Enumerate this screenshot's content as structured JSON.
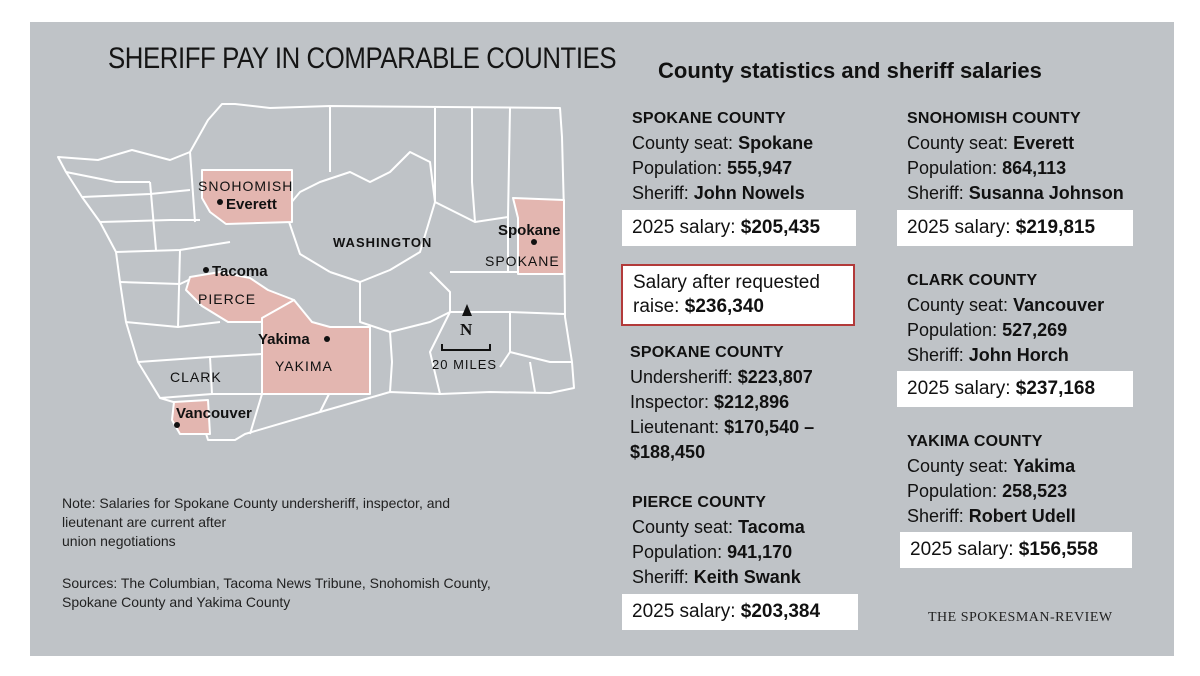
{
  "map_title": "SHERIFF PAY IN COMPARABLE COUNTIES",
  "stats_title": "County statistics and sheriff salaries",
  "map": {
    "state_label": "WASHINGTON",
    "counties": [
      {
        "name": "SNOHOMISH",
        "city": "Everett"
      },
      {
        "name": "PIERCE",
        "city": "Tacoma"
      },
      {
        "name": "YAKIMA",
        "city": "Yakima"
      },
      {
        "name": "CLARK",
        "city": "Vancouver"
      },
      {
        "name": "SPOKANE",
        "city": "Spokane"
      }
    ],
    "north_label": "N",
    "scale_label": "20 MILES",
    "highlight_color": "#e3b6b0",
    "land_color": "#bfc3c7",
    "border_color": "#ffffff"
  },
  "note": {
    "line1": "Note: Salaries for Spokane County undersheriff, inspector, and",
    "line2": "lieutenant are current after",
    "line3": "union negotiations"
  },
  "sources": {
    "line1": "Sources: The Columbian, Tacoma News Tribune, Snohomish County,",
    "line2": "Spokane County and Yakima County"
  },
  "spokane": {
    "title": "SPOKANE COUNTY",
    "seat_label": "County seat: ",
    "seat": "Spokane",
    "pop_label": "Population: ",
    "pop": "555,947",
    "sheriff_label": "Sheriff: ",
    "sheriff": "John Nowels",
    "salary_label": "2025 salary: ",
    "salary": "$205,435"
  },
  "raise": {
    "line1": "Salary after requested",
    "label": "raise: ",
    "value": "$236,340"
  },
  "spokane_staff": {
    "title": "SPOKANE COUNTY",
    "under_label": "Undersheriff: ",
    "under": "$223,807",
    "insp_label": "Inspector: ",
    "insp": "$212,896",
    "lt_label": "Lieutenant: ",
    "lt_a": "$170,540 –",
    "lt_b": "$188,450"
  },
  "pierce": {
    "title": "PIERCE COUNTY",
    "seat_label": "County seat: ",
    "seat": "Tacoma",
    "pop_label": "Population: ",
    "pop": "941,170",
    "sheriff_label": "Sheriff: ",
    "sheriff": "Keith Swank",
    "salary_label": "2025 salary: ",
    "salary": "$203,384"
  },
  "snohomish": {
    "title": "SNOHOMISH COUNTY",
    "seat_label": "County seat: ",
    "seat": "Everett",
    "pop_label": "Population: ",
    "pop": "864,113",
    "sheriff_label": "Sheriff: ",
    "sheriff": "Susanna Johnson",
    "salary_label": "2025 salary: ",
    "salary": "$219,815"
  },
  "clark": {
    "title": "CLARK COUNTY",
    "seat_label": "County seat: ",
    "seat": "Vancouver",
    "pop_label": "Population: ",
    "pop": "527,269",
    "sheriff_label": "Sheriff: ",
    "sheriff": "John Horch",
    "salary_label": "2025 salary: ",
    "salary": "$237,168"
  },
  "yakima": {
    "title": "YAKIMA COUNTY",
    "seat_label": "County seat: ",
    "seat": "Yakima",
    "pop_label": "Population: ",
    "pop": "258,523",
    "sheriff_label": "Sheriff: ",
    "sheriff": "Robert Udell",
    "salary_label": "2025 salary: ",
    "salary": "$156,558"
  },
  "credit": "THE SPOKESMAN-REVIEW"
}
